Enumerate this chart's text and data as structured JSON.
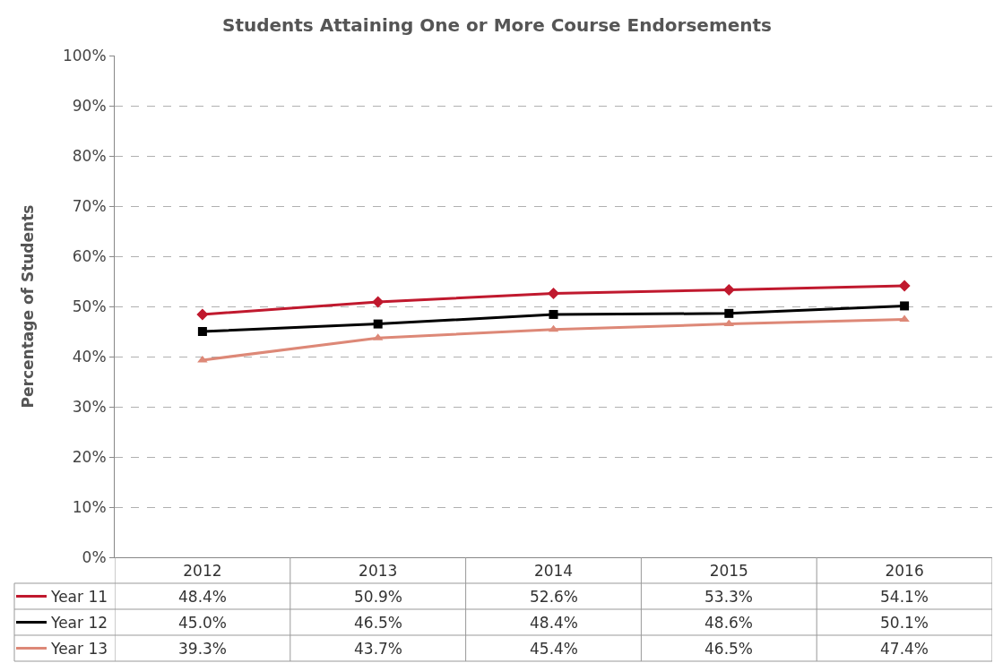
{
  "chart_data": {
    "type": "line",
    "title": "Students Attaining One or More Course Endorsements",
    "ylabel": "Percentage of Students",
    "categories": [
      "2012",
      "2013",
      "2014",
      "2015",
      "2016"
    ],
    "series": [
      {
        "name": "Year 11",
        "color": "#c0192e",
        "marker": "diamond",
        "values": [
          48.4,
          50.9,
          52.6,
          53.3,
          54.1
        ],
        "value_labels": [
          "48.4%",
          "50.9%",
          "52.6%",
          "53.3%",
          "54.1%"
        ]
      },
      {
        "name": "Year 12",
        "color": "#000000",
        "marker": "square",
        "values": [
          45.0,
          46.5,
          48.4,
          48.6,
          50.1
        ],
        "value_labels": [
          "45.0%",
          "46.5%",
          "48.4%",
          "48.6%",
          "50.1%"
        ]
      },
      {
        "name": "Year 13",
        "color": "#dd8877",
        "marker": "triangle",
        "values": [
          39.3,
          43.7,
          45.4,
          46.5,
          47.4
        ],
        "value_labels": [
          "39.3%",
          "43.7%",
          "45.4%",
          "46.5%",
          "47.4%"
        ]
      }
    ],
    "ylim": [
      0,
      100
    ],
    "yticks": [
      {
        "value": 0,
        "label": "0%"
      },
      {
        "value": 10,
        "label": "10%"
      },
      {
        "value": 20,
        "label": "20%"
      },
      {
        "value": 30,
        "label": "30%"
      },
      {
        "value": 40,
        "label": "40%"
      },
      {
        "value": 50,
        "label": "50%"
      },
      {
        "value": 60,
        "label": "60%"
      },
      {
        "value": 70,
        "label": "70%"
      },
      {
        "value": 80,
        "label": "80%"
      },
      {
        "value": 90,
        "label": "90%"
      },
      {
        "value": 100,
        "label": "100%"
      }
    ],
    "grid": "y",
    "legend": "bottom",
    "line_style": "solid"
  }
}
